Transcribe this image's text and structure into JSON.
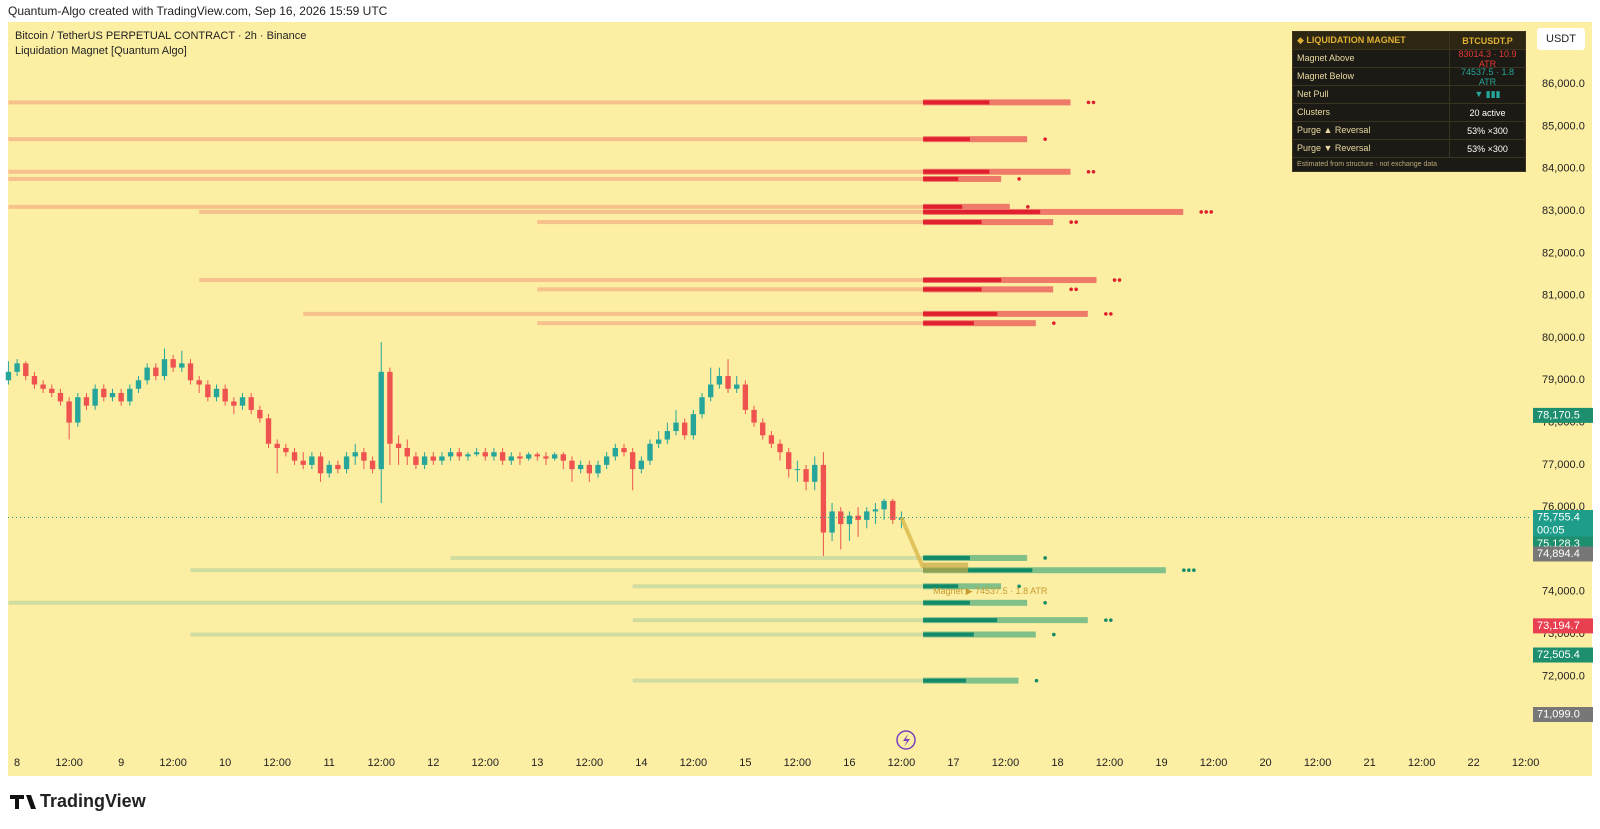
{
  "header": "Quantum-Algo created with TradingView.com, Sep 16, 2026 15:59 UTC",
  "brand": "TradingView",
  "currency_button": "USDT",
  "chart_data": {
    "type": "candlestick",
    "title": "Bitcoin / TetherUS PERPETUAL CONTRACT · 2h · Binance",
    "subtitle": "Liquidation Magnet [Quantum Algo]",
    "up_color": "#26a69a",
    "down_color": "#ef5350",
    "background": "#fcefa3",
    "grid": false,
    "xlim": [
      -2.1,
      349
    ],
    "ylim": [
      70260,
      87470
    ],
    "xticks": [
      {
        "value": 0,
        "label": "8"
      },
      {
        "value": 12,
        "label": "12:00"
      },
      {
        "value": 24,
        "label": "9"
      },
      {
        "value": 36,
        "label": "12:00"
      },
      {
        "value": 48,
        "label": "10"
      },
      {
        "value": 60,
        "label": "12:00"
      },
      {
        "value": 72,
        "label": "11"
      },
      {
        "value": 84,
        "label": "12:00"
      },
      {
        "value": 96,
        "label": "12"
      },
      {
        "value": 108,
        "label": "12:00"
      },
      {
        "value": 120,
        "label": "13"
      },
      {
        "value": 132,
        "label": "12:00"
      },
      {
        "value": 144,
        "label": "14"
      },
      {
        "value": 156,
        "label": "12:00"
      },
      {
        "value": 168,
        "label": "15"
      },
      {
        "value": 180,
        "label": "12:00"
      },
      {
        "value": 192,
        "label": "16"
      },
      {
        "value": 204,
        "label": "12:00"
      },
      {
        "value": 216,
        "label": "17"
      },
      {
        "value": 228,
        "label": "12:00"
      },
      {
        "value": 240,
        "label": "18"
      },
      {
        "value": 252,
        "label": "12:00"
      },
      {
        "value": 264,
        "label": "19"
      },
      {
        "value": 276,
        "label": "12:00"
      },
      {
        "value": 288,
        "label": "20"
      },
      {
        "value": 300,
        "label": "12:00"
      },
      {
        "value": 312,
        "label": "21"
      },
      {
        "value": 324,
        "label": "12:00"
      },
      {
        "value": 336,
        "label": "22"
      },
      {
        "value": 348,
        "label": "12:00"
      }
    ],
    "yticks": [
      {
        "value": 72000,
        "label": "72,000.0"
      },
      {
        "value": 73000,
        "label": "73,000.0"
      },
      {
        "value": 74000,
        "label": "74,000.0"
      },
      {
        "value": 75000,
        "label": "75,000.0"
      },
      {
        "value": 76000,
        "label": "76,000.0"
      },
      {
        "value": 77000,
        "label": "77,000.0"
      },
      {
        "value": 78000,
        "label": "78,000.0"
      },
      {
        "value": 79000,
        "label": "79,000.0"
      },
      {
        "value": 80000,
        "label": "80,000.0"
      },
      {
        "value": 81000,
        "label": "81,000.0"
      },
      {
        "value": 82000,
        "label": "82,000.0"
      },
      {
        "value": 83000,
        "label": "83,000.0"
      },
      {
        "value": 84000,
        "label": "84,000.0"
      },
      {
        "value": 85000,
        "label": "85,000.0"
      },
      {
        "value": 86000,
        "label": "86,000.0"
      }
    ],
    "candles": {
      "t": [
        -2,
        0,
        2,
        4,
        6,
        8,
        10,
        12,
        14,
        16,
        18,
        20,
        22,
        24,
        26,
        28,
        30,
        32,
        34,
        36,
        38,
        40,
        42,
        44,
        46,
        48,
        50,
        52,
        54,
        56,
        58,
        60,
        62,
        64,
        66,
        68,
        70,
        72,
        74,
        76,
        78,
        80,
        82,
        84,
        86,
        88,
        90,
        92,
        94,
        96,
        98,
        100,
        102,
        104,
        106,
        108,
        110,
        112,
        114,
        116,
        118,
        120,
        122,
        124,
        126,
        128,
        130,
        132,
        134,
        136,
        138,
        140,
        142,
        144,
        146,
        148,
        150,
        152,
        154,
        156,
        158,
        160,
        162,
        164,
        166,
        168,
        170,
        172,
        174,
        176,
        178,
        180,
        182,
        184,
        186,
        188,
        190,
        192,
        194,
        196,
        198,
        200,
        202,
        204
      ],
      "ohlc": [
        [
          79000,
          79450,
          78900,
          79200
        ],
        [
          79200,
          79500,
          79100,
          79400
        ],
        [
          79400,
          79450,
          79000,
          79100
        ],
        [
          79100,
          79200,
          78800,
          78900
        ],
        [
          78900,
          79000,
          78700,
          78800
        ],
        [
          78800,
          78900,
          78600,
          78700
        ],
        [
          78700,
          78800,
          78400,
          78500
        ],
        [
          78500,
          78600,
          77600,
          78000
        ],
        [
          78000,
          78700,
          77900,
          78600
        ],
        [
          78600,
          78700,
          78300,
          78400
        ],
        [
          78400,
          78900,
          78300,
          78800
        ],
        [
          78800,
          78900,
          78500,
          78600
        ],
        [
          78600,
          78800,
          78500,
          78700
        ],
        [
          78700,
          78800,
          78400,
          78500
        ],
        [
          78500,
          78900,
          78400,
          78800
        ],
        [
          78800,
          79100,
          78700,
          79000
        ],
        [
          79000,
          79400,
          78900,
          79300
        ],
        [
          79300,
          79400,
          79000,
          79100
        ],
        [
          79100,
          79750,
          79000,
          79500
        ],
        [
          79500,
          79600,
          79200,
          79300
        ],
        [
          79300,
          79700,
          79200,
          79400
        ],
        [
          79400,
          79500,
          78900,
          79000
        ],
        [
          79000,
          79100,
          78700,
          78900
        ],
        [
          78900,
          79000,
          78500,
          78600
        ],
        [
          78600,
          78900,
          78500,
          78800
        ],
        [
          78800,
          78900,
          78400,
          78500
        ],
        [
          78500,
          78600,
          78200,
          78400
        ],
        [
          78400,
          78700,
          78300,
          78600
        ],
        [
          78600,
          78700,
          78200,
          78300
        ],
        [
          78300,
          78400,
          78000,
          78100
        ],
        [
          78100,
          78200,
          77400,
          77500
        ],
        [
          77500,
          77600,
          76800,
          77400
        ],
        [
          77400,
          77500,
          77200,
          77300
        ],
        [
          77300,
          77400,
          77000,
          77100
        ],
        [
          77100,
          77300,
          76900,
          77000
        ],
        [
          77000,
          77300,
          76900,
          77200
        ],
        [
          77200,
          77300,
          76600,
          76800
        ],
        [
          76800,
          77100,
          76700,
          77000
        ],
        [
          77000,
          77100,
          76800,
          76900
        ],
        [
          76900,
          77300,
          76800,
          77200
        ],
        [
          77200,
          77500,
          77000,
          77300
        ],
        [
          77300,
          77400,
          76900,
          77100
        ],
        [
          77100,
          77200,
          76800,
          76900
        ],
        [
          76900,
          79900,
          76100,
          79200
        ],
        [
          79200,
          79300,
          77000,
          77500
        ],
        [
          77500,
          77700,
          77000,
          77400
        ],
        [
          77400,
          77600,
          77000,
          77200
        ],
        [
          77200,
          77300,
          76900,
          77000
        ],
        [
          77000,
          77300,
          76900,
          77200
        ],
        [
          77200,
          77300,
          77000,
          77100
        ],
        [
          77100,
          77300,
          77000,
          77200
        ],
        [
          77200,
          77400,
          77100,
          77300
        ],
        [
          77300,
          77400,
          77100,
          77200
        ],
        [
          77200,
          77300,
          77100,
          77250
        ],
        [
          77250,
          77400,
          77200,
          77300
        ],
        [
          77300,
          77400,
          77100,
          77200
        ],
        [
          77200,
          77400,
          77100,
          77300
        ],
        [
          77300,
          77400,
          77000,
          77100
        ],
        [
          77100,
          77300,
          77000,
          77200
        ],
        [
          77200,
          77300,
          77000,
          77150
        ],
        [
          77150,
          77300,
          77100,
          77250
        ],
        [
          77250,
          77300,
          77100,
          77200
        ],
        [
          77200,
          77300,
          77000,
          77150
        ],
        [
          77150,
          77300,
          77100,
          77250
        ],
        [
          77250,
          77300,
          76900,
          77100
        ],
        [
          77100,
          77200,
          76600,
          76900
        ],
        [
          76900,
          77100,
          76800,
          77000
        ],
        [
          77000,
          77100,
          76600,
          76800
        ],
        [
          76800,
          77100,
          76700,
          77000
        ],
        [
          77000,
          77300,
          76900,
          77200
        ],
        [
          77200,
          77500,
          77100,
          77400
        ],
        [
          77400,
          77500,
          77200,
          77300
        ],
        [
          77300,
          77400,
          76400,
          76900
        ],
        [
          76900,
          77200,
          76800,
          77100
        ],
        [
          77100,
          77600,
          77000,
          77500
        ],
        [
          77500,
          77800,
          77400,
          77600
        ],
        [
          77600,
          78000,
          77500,
          77800
        ],
        [
          77800,
          78300,
          77700,
          78000
        ],
        [
          78000,
          78100,
          77600,
          77700
        ],
        [
          77700,
          78300,
          77600,
          78200
        ],
        [
          78200,
          78700,
          78100,
          78600
        ],
        [
          78600,
          79300,
          78500,
          78900
        ],
        [
          78900,
          79300,
          78800,
          79100
        ],
        [
          79100,
          79500,
          78700,
          78800
        ],
        [
          78800,
          79100,
          78700,
          78900
        ],
        [
          78900,
          79000,
          78200,
          78300
        ],
        [
          78300,
          78400,
          77900,
          78000
        ],
        [
          78000,
          78100,
          77600,
          77700
        ],
        [
          77700,
          77800,
          77400,
          77500
        ],
        [
          77500,
          77600,
          77100,
          77300
        ],
        [
          77300,
          77400,
          76700,
          76900
        ],
        [
          76900,
          77100,
          76600,
          76900
        ],
        [
          76900,
          77000,
          76400,
          76600
        ],
        [
          76600,
          77200,
          76400,
          77000
        ],
        [
          77000,
          77300,
          74850,
          75400
        ],
        [
          75400,
          76100,
          75200,
          75900
        ],
        [
          75900,
          76000,
          75000,
          75600
        ],
        [
          75600,
          75900,
          75200,
          75800
        ],
        [
          75800,
          76000,
          75300,
          75700
        ],
        [
          75700,
          76000,
          75500,
          75900
        ],
        [
          75900,
          76100,
          75600,
          75950
        ],
        [
          75950,
          76200,
          75700,
          76150
        ],
        [
          76150,
          76200,
          75600,
          75700
        ],
        [
          75700,
          75900,
          75500,
          75755.4
        ]
      ]
    },
    "zone_start": 209,
    "zones": [
      {
        "line_color": "#f4b888",
        "dark_color": "#e0202e",
        "light_color": "#ee7a6a",
        "items": [
          {
            "price": 85570,
            "from": -2,
            "to": 243,
            "dots": 2
          },
          {
            "price": 84700,
            "from": -2,
            "to": 233,
            "dots": 1
          },
          {
            "price": 83930,
            "from": -2,
            "to": 243,
            "dots": 2
          },
          {
            "price": 83760,
            "from": -2,
            "to": 227,
            "dots": 1
          },
          {
            "price": 83100,
            "from": -2,
            "to": 229,
            "dots": 1
          },
          {
            "price": 82980,
            "from": 42,
            "to": 269,
            "dots": 3
          },
          {
            "price": 82740,
            "from": 120,
            "to": 239,
            "dots": 2
          },
          {
            "price": 81370,
            "from": 42,
            "to": 249,
            "dots": 2
          },
          {
            "price": 81150,
            "from": 120,
            "to": 239,
            "dots": 2
          },
          {
            "price": 80570,
            "from": 66,
            "to": 247,
            "dots": 2
          },
          {
            "price": 80350,
            "from": 120,
            "to": 235,
            "dots": 1
          }
        ]
      },
      {
        "line_color": "#c9d9a0",
        "dark_color": "#128a68",
        "light_color": "#82c08a",
        "items": [
          {
            "price": 74800,
            "from": 100,
            "to": 233,
            "dots": 1
          },
          {
            "price": 74510,
            "from": 40,
            "to": 265,
            "dots": 3
          },
          {
            "price": 74130,
            "from": 142,
            "to": 227,
            "dots": 1
          },
          {
            "price": 73740,
            "from": -2,
            "to": 233,
            "dots": 1
          },
          {
            "price": 73330,
            "from": 142,
            "to": 247,
            "dots": 2
          },
          {
            "price": 72990,
            "from": 40,
            "to": 235,
            "dots": 1
          },
          {
            "price": 71900,
            "from": 142,
            "to": 231,
            "dots": 1
          }
        ]
      }
    ],
    "magnet_label": "Magnet ▶ 74537.5 · 1.8 ATR",
    "price_labels": [
      {
        "value": 78170.5,
        "label": "78,170.5",
        "color": "#1e8f6e"
      },
      {
        "value": 75755.4,
        "label": "75,755.4",
        "sub": "00:05",
        "color": "#1e9e8a",
        "line": true
      },
      {
        "value": 75128.3,
        "label": "75,128.3",
        "color": "#1e8f6e"
      },
      {
        "value": 74894.4,
        "label": "74,894.4",
        "color": "#777777"
      },
      {
        "value": 73194.7,
        "label": "73,194.7",
        "color": "#e84050"
      },
      {
        "value": 72505.4,
        "label": "72,505.4",
        "color": "#1e8f6e"
      },
      {
        "value": 71099.0,
        "label": "71,099.0",
        "color": "#777777"
      }
    ]
  },
  "panel": {
    "title": "◆ LIQUIDATION MAGNET",
    "symbol": "BTCUSDT.P",
    "rows": [
      {
        "label": "Magnet Above",
        "value": "83014.3 · 10.9 ATR",
        "color": "#e53935"
      },
      {
        "label": "Magnet Below",
        "value": "74537.5 · 1.8 ATR",
        "color": "#26a69a"
      },
      {
        "label": "Net Pull",
        "value": "▼ ▮▮▮",
        "color": "#26a69a"
      },
      {
        "label": "Clusters",
        "value": "20 active",
        "color": "#ffffff"
      },
      {
        "label": "Purge ▲ Reversal",
        "value": "53% ×300",
        "color": "#ffffff"
      },
      {
        "label": "Purge ▼ Reversal",
        "value": "53% ×300",
        "color": "#ffffff"
      }
    ],
    "footer": "Estimated from structure · not exchange data"
  }
}
